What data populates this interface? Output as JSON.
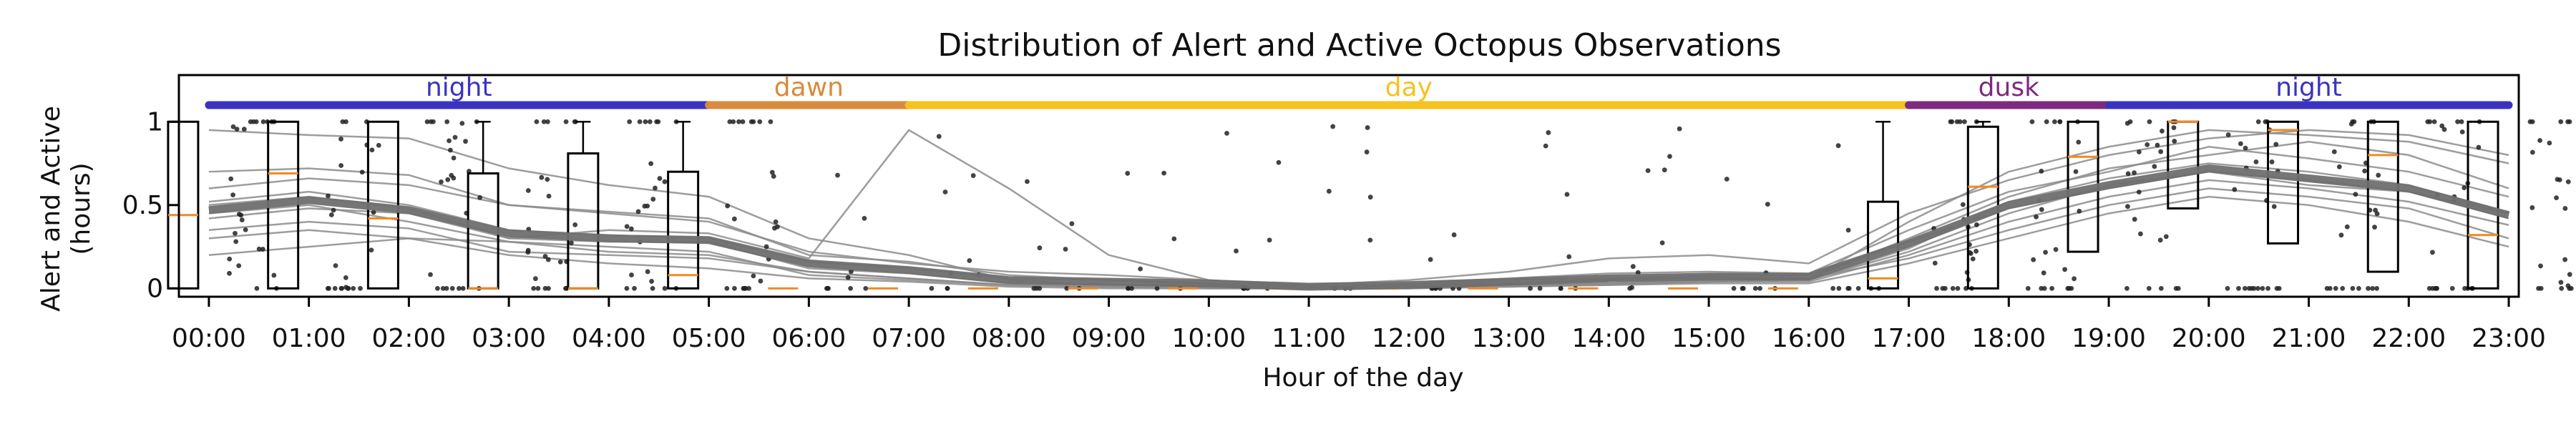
{
  "chart_data": {
    "type": "box",
    "title": "Distribution of Alert and Active Octopus Observations",
    "xlabel": "Hour of the day",
    "ylabel_lines": [
      "Alert and Active",
      "(hours)"
    ],
    "categories": [
      "00:00",
      "01:00",
      "02:00",
      "03:00",
      "04:00",
      "05:00",
      "06:00",
      "07:00",
      "08:00",
      "09:00",
      "10:00",
      "11:00",
      "12:00",
      "13:00",
      "14:00",
      "15:00",
      "16:00",
      "17:00",
      "18:00",
      "19:00",
      "20:00",
      "21:00",
      "22:00",
      "23:00"
    ],
    "y_ticks": [
      0,
      0.5,
      1
    ],
    "y_tick_labels": [
      "0",
      "0.5",
      "1"
    ],
    "ylim": [
      -0.05,
      1.28
    ],
    "xlim": [
      -0.3,
      23.1
    ],
    "periods": [
      {
        "label": "night",
        "start": 0,
        "end": 5,
        "color": "#3a33c0"
      },
      {
        "label": "dawn",
        "start": 5,
        "end": 7,
        "color": "#d98a3c"
      },
      {
        "label": "day",
        "start": 7,
        "end": 17,
        "color": "#f6c21f"
      },
      {
        "label": "dusk",
        "start": 17,
        "end": 19,
        "color": "#7e2a7e"
      },
      {
        "label": "night",
        "start": 19,
        "end": 23,
        "color": "#3a33c0"
      }
    ],
    "boxes": [
      {
        "hour": "00:00",
        "q1": 0.0,
        "median": 0.44,
        "q3": 1.0,
        "whisker_low": 0.0,
        "whisker_high": 1.0
      },
      {
        "hour": "01:00",
        "q1": 0.0,
        "median": 0.69,
        "q3": 1.0,
        "whisker_low": 0.0,
        "whisker_high": 1.0
      },
      {
        "hour": "02:00",
        "q1": 0.0,
        "median": 0.42,
        "q3": 1.0,
        "whisker_low": 0.0,
        "whisker_high": 1.0
      },
      {
        "hour": "03:00",
        "q1": 0.0,
        "median": 0.0,
        "q3": 0.69,
        "whisker_low": 0.0,
        "whisker_high": 1.0
      },
      {
        "hour": "04:00",
        "q1": 0.0,
        "median": 0.0,
        "q3": 0.81,
        "whisker_low": 0.0,
        "whisker_high": 1.0
      },
      {
        "hour": "05:00",
        "q1": 0.0,
        "median": 0.08,
        "q3": 0.7,
        "whisker_low": 0.0,
        "whisker_high": 1.0
      },
      {
        "hour": "06:00",
        "q1": 0.0,
        "median": 0.0,
        "q3": 0.0,
        "whisker_low": 0.0,
        "whisker_high": 0.0
      },
      {
        "hour": "07:00",
        "q1": 0.0,
        "median": 0.0,
        "q3": 0.0,
        "whisker_low": 0.0,
        "whisker_high": 0.0
      },
      {
        "hour": "08:00",
        "q1": 0.0,
        "median": 0.0,
        "q3": 0.0,
        "whisker_low": 0.0,
        "whisker_high": 0.0
      },
      {
        "hour": "09:00",
        "q1": 0.0,
        "median": 0.0,
        "q3": 0.0,
        "whisker_low": 0.0,
        "whisker_high": 0.0
      },
      {
        "hour": "10:00",
        "q1": 0.0,
        "median": 0.0,
        "q3": 0.0,
        "whisker_low": 0.0,
        "whisker_high": 0.0
      },
      {
        "hour": "11:00",
        "q1": 0.0,
        "median": 0.0,
        "q3": 0.0,
        "whisker_low": 0.0,
        "whisker_high": 0.0
      },
      {
        "hour": "12:00",
        "q1": 0.0,
        "median": 0.0,
        "q3": 0.0,
        "whisker_low": 0.0,
        "whisker_high": 0.0
      },
      {
        "hour": "13:00",
        "q1": 0.0,
        "median": 0.0,
        "q3": 0.0,
        "whisker_low": 0.0,
        "whisker_high": 0.0
      },
      {
        "hour": "14:00",
        "q1": 0.0,
        "median": 0.0,
        "q3": 0.0,
        "whisker_low": 0.0,
        "whisker_high": 0.0
      },
      {
        "hour": "15:00",
        "q1": 0.0,
        "median": 0.0,
        "q3": 0.0,
        "whisker_low": 0.0,
        "whisker_high": 0.0
      },
      {
        "hour": "16:00",
        "q1": 0.0,
        "median": 0.0,
        "q3": 0.0,
        "whisker_low": 0.0,
        "whisker_high": 0.0
      },
      {
        "hour": "17:00",
        "q1": 0.0,
        "median": 0.06,
        "q3": 0.52,
        "whisker_low": 0.0,
        "whisker_high": 1.0
      },
      {
        "hour": "18:00",
        "q1": 0.0,
        "median": 0.61,
        "q3": 0.97,
        "whisker_low": 0.0,
        "whisker_high": 1.0
      },
      {
        "hour": "19:00",
        "q1": 0.22,
        "median": 0.79,
        "q3": 1.0,
        "whisker_low": 0.0,
        "whisker_high": 1.0
      },
      {
        "hour": "20:00",
        "q1": 0.48,
        "median": 1.0,
        "q3": 1.0,
        "whisker_low": 0.0,
        "whisker_high": 1.0
      },
      {
        "hour": "21:00",
        "q1": 0.27,
        "median": 0.95,
        "q3": 1.0,
        "whisker_low": 0.0,
        "whisker_high": 1.0
      },
      {
        "hour": "22:00",
        "q1": 0.1,
        "median": 0.8,
        "q3": 1.0,
        "whisker_low": 0.0,
        "whisker_high": 1.0
      },
      {
        "hour": "23:00",
        "q1": 0.0,
        "median": 0.32,
        "q3": 1.0,
        "whisker_low": 0.0,
        "whisker_high": 1.0
      }
    ],
    "mean": [
      0.47,
      0.53,
      0.47,
      0.33,
      0.3,
      0.29,
      0.15,
      0.11,
      0.05,
      0.04,
      0.03,
      0.01,
      0.02,
      0.04,
      0.06,
      0.07,
      0.07,
      0.27,
      0.5,
      0.62,
      0.72,
      0.66,
      0.6,
      0.44
    ],
    "individual_lines": [
      [
        0.52,
        0.58,
        0.5,
        0.35,
        0.32,
        0.3,
        0.16,
        0.12,
        0.06,
        0.05,
        0.03,
        0.01,
        0.02,
        0.05,
        0.06,
        0.08,
        0.08,
        0.28,
        0.48,
        0.6,
        0.7,
        0.62,
        0.58,
        0.42
      ],
      [
        0.42,
        0.48,
        0.45,
        0.3,
        0.28,
        0.28,
        0.12,
        0.09,
        0.03,
        0.02,
        0.02,
        0.0,
        0.01,
        0.03,
        0.05,
        0.06,
        0.05,
        0.24,
        0.52,
        0.66,
        0.75,
        0.7,
        0.62,
        0.45
      ],
      [
        0.6,
        0.66,
        0.62,
        0.5,
        0.46,
        0.42,
        0.2,
        0.16,
        0.08,
        0.05,
        0.03,
        0.01,
        0.03,
        0.06,
        0.09,
        0.1,
        0.09,
        0.35,
        0.58,
        0.7,
        0.85,
        0.78,
        0.7,
        0.55
      ],
      [
        0.35,
        0.4,
        0.36,
        0.22,
        0.2,
        0.18,
        0.1,
        0.06,
        0.02,
        0.01,
        0.01,
        0.0,
        0.0,
        0.02,
        0.03,
        0.04,
        0.04,
        0.2,
        0.4,
        0.55,
        0.65,
        0.6,
        0.52,
        0.38
      ],
      [
        0.95,
        0.92,
        0.9,
        0.72,
        0.62,
        0.55,
        0.3,
        0.2,
        0.05,
        0.02,
        0.01,
        0.0,
        0.0,
        0.01,
        0.02,
        0.04,
        0.05,
        0.4,
        0.7,
        0.85,
        0.95,
        0.92,
        0.88,
        0.75
      ],
      [
        0.2,
        0.25,
        0.3,
        0.28,
        0.25,
        0.22,
        0.08,
        0.05,
        0.02,
        0.01,
        0.0,
        0.0,
        0.01,
        0.02,
        0.03,
        0.05,
        0.06,
        0.18,
        0.35,
        0.5,
        0.6,
        0.55,
        0.48,
        0.3
      ],
      [
        0.5,
        0.55,
        0.48,
        0.3,
        0.35,
        0.33,
        0.18,
        0.95,
        0.6,
        0.2,
        0.05,
        0.01,
        0.02,
        0.03,
        0.05,
        0.07,
        0.06,
        0.3,
        0.55,
        0.72,
        0.8,
        0.88,
        0.8,
        0.6
      ],
      [
        0.3,
        0.35,
        0.3,
        0.2,
        0.15,
        0.12,
        0.06,
        0.04,
        0.01,
        0.0,
        0.0,
        0.0,
        0.0,
        0.01,
        0.02,
        0.03,
        0.03,
        0.15,
        0.3,
        0.45,
        0.55,
        0.5,
        0.4,
        0.25
      ],
      [
        0.7,
        0.72,
        0.68,
        0.5,
        0.45,
        0.4,
        0.22,
        0.15,
        0.1,
        0.08,
        0.05,
        0.02,
        0.05,
        0.1,
        0.18,
        0.2,
        0.15,
        0.45,
        0.65,
        0.8,
        0.9,
        0.95,
        0.92,
        0.8
      ],
      [
        0.45,
        0.5,
        0.4,
        0.28,
        0.22,
        0.2,
        0.1,
        0.06,
        0.02,
        0.01,
        0.0,
        0.0,
        0.01,
        0.02,
        0.03,
        0.04,
        0.05,
        0.22,
        0.45,
        0.62,
        0.7,
        0.65,
        0.58,
        0.45
      ]
    ]
  }
}
